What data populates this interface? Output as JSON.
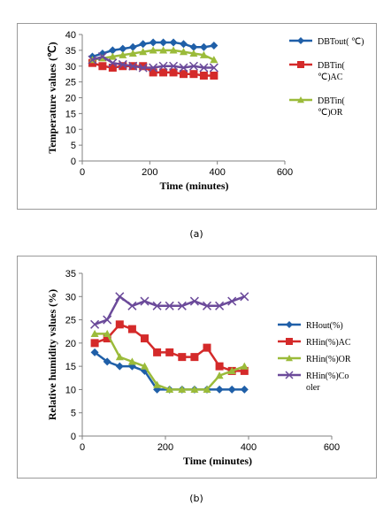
{
  "figure": {
    "caption_a": "(a)",
    "caption_b": "(b)"
  },
  "chart_data": [
    {
      "type": "line",
      "xlabel": "Time (minutes)",
      "ylabel": "Temperature values (℃)",
      "xlim": [
        0,
        600
      ],
      "ylim": [
        0,
        40
      ],
      "x_ticks": [
        0,
        200,
        400,
        600
      ],
      "y_ticks": [
        0,
        5,
        10,
        15,
        20,
        25,
        30,
        35,
        40
      ],
      "grid": false,
      "legend_position": "right",
      "series": [
        {
          "name": "DBTout( ℃)",
          "legend_lines": [
            "DBTout( ℃)"
          ],
          "color": "#1f5fa8",
          "marker": "diamond",
          "x": [
            30,
            60,
            90,
            120,
            150,
            180,
            210,
            240,
            270,
            300,
            330,
            360,
            390
          ],
          "y": [
            33,
            34,
            35,
            35.5,
            36,
            37,
            37.5,
            37.5,
            37.5,
            37,
            36,
            36,
            36.5
          ]
        },
        {
          "name": "DBTin( ℃)AC",
          "legend_lines": [
            "DBTin(",
            "℃)AC"
          ],
          "color": "#d42a2a",
          "marker": "square",
          "x": [
            30,
            60,
            90,
            120,
            150,
            180,
            210,
            240,
            270,
            300,
            330,
            360,
            390
          ],
          "y": [
            31,
            30,
            29.5,
            30,
            30,
            30,
            28,
            28,
            28,
            27.5,
            27.5,
            27,
            27
          ]
        },
        {
          "name": "DBTin( ℃)OR",
          "legend_lines": [
            "DBTin(",
            "℃)OR"
          ],
          "color": "#9bbb3a",
          "marker": "triangle",
          "x": [
            30,
            60,
            90,
            120,
            150,
            180,
            210,
            240,
            270,
            300,
            330,
            360,
            390
          ],
          "y": [
            32,
            32.5,
            33,
            33.5,
            34,
            34.5,
            35,
            35,
            35,
            34.5,
            34,
            33.5,
            32
          ]
        },
        {
          "name": "",
          "legend_lines": [],
          "color": "#6b4a9a",
          "marker": "x",
          "x": [
            30,
            60,
            90,
            120,
            150,
            180,
            210,
            240,
            270,
            300,
            330,
            360,
            390
          ],
          "y": [
            32,
            33,
            31,
            30.5,
            30,
            29.5,
            29.5,
            30,
            30,
            29.5,
            30,
            29.5,
            29.5
          ]
        }
      ]
    },
    {
      "type": "line",
      "xlabel": "Time (minutes)",
      "ylabel": "Relative humidity vslues (%)",
      "xlim": [
        0,
        600
      ],
      "ylim": [
        0,
        35
      ],
      "x_ticks": [
        0,
        200,
        400,
        600
      ],
      "y_ticks": [
        0,
        5,
        10,
        15,
        20,
        25,
        30,
        35
      ],
      "grid": false,
      "legend_position": "right",
      "series": [
        {
          "name": "RHout(%)",
          "legend_lines": [
            "RHout(%)"
          ],
          "color": "#1f5fa8",
          "marker": "diamond",
          "x": [
            30,
            60,
            90,
            120,
            150,
            180,
            210,
            240,
            270,
            300,
            330,
            360,
            390
          ],
          "y": [
            18,
            16,
            15,
            15,
            14,
            10,
            10,
            10,
            10,
            10,
            10,
            10,
            10
          ]
        },
        {
          "name": "RHin(%)AC",
          "legend_lines": [
            "RHin(%)AC"
          ],
          "color": "#d42a2a",
          "marker": "square",
          "x": [
            30,
            60,
            90,
            120,
            150,
            180,
            210,
            240,
            270,
            300,
            330,
            360,
            390
          ],
          "y": [
            20,
            21,
            24,
            23,
            21,
            18,
            18,
            17,
            17,
            19,
            15,
            14,
            14
          ]
        },
        {
          "name": "RHin(%)OR",
          "legend_lines": [
            "RHin(%)OR"
          ],
          "color": "#9bbb3a",
          "marker": "triangle",
          "x": [
            30,
            60,
            90,
            120,
            150,
            180,
            210,
            240,
            270,
            300,
            330,
            360,
            390
          ],
          "y": [
            22,
            22,
            17,
            16,
            15,
            11,
            10,
            10,
            10,
            10,
            13,
            14,
            15
          ]
        },
        {
          "name": "RHin(%)Cooler",
          "legend_lines": [
            "RHin(%)Co",
            "oler"
          ],
          "color": "#6b4a9a",
          "marker": "x",
          "x": [
            30,
            60,
            90,
            120,
            150,
            180,
            210,
            240,
            270,
            300,
            330,
            360,
            390
          ],
          "y": [
            24,
            25,
            30,
            28,
            29,
            28,
            28,
            28,
            29,
            28,
            28,
            29,
            30
          ]
        }
      ]
    }
  ]
}
